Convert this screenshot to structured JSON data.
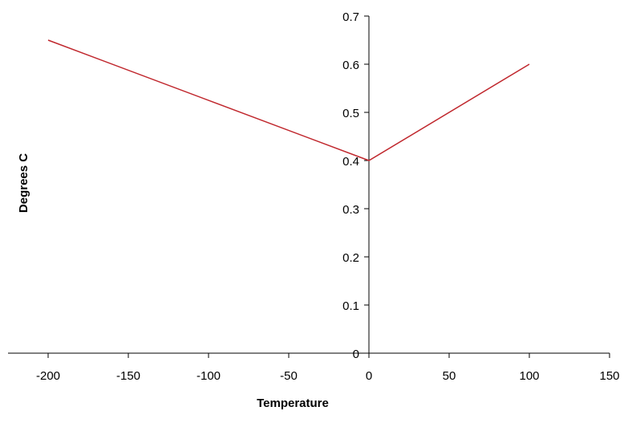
{
  "chart_data": {
    "type": "line",
    "title": "",
    "xlabel": "Temperature",
    "ylabel": "Degrees C",
    "xlim": [
      -225,
      150
    ],
    "ylim": [
      0,
      0.7
    ],
    "x_ticks": [
      -200,
      -150,
      -100,
      -50,
      0,
      50,
      100,
      150
    ],
    "y_ticks": [
      0,
      0.1,
      0.2,
      0.3,
      0.4,
      0.5,
      0.6,
      0.7
    ],
    "x_tick_labels": [
      "-200",
      "-150",
      "-100",
      "-50",
      "0",
      "50",
      "100",
      "150"
    ],
    "y_tick_labels": [
      "0",
      "0.1",
      "0.2",
      "0.3",
      "0.4",
      "0.5",
      "0.6",
      "0.7"
    ],
    "grid": false,
    "legend": "none",
    "series": [
      {
        "x": [
          -200,
          0,
          100
        ],
        "y": [
          0.65,
          0.4,
          0.6
        ],
        "color": "#c0272d"
      }
    ]
  }
}
